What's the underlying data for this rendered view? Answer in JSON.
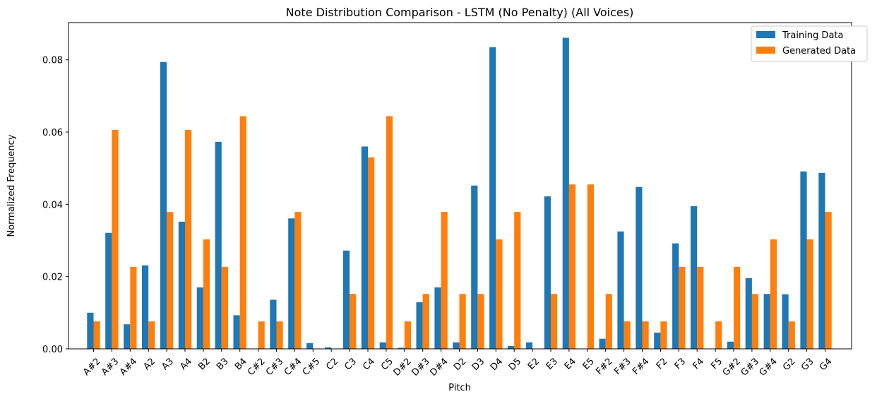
{
  "chart_data": {
    "type": "bar",
    "title": "Note Distribution Comparison - LSTM (No Penalty) (All Voices)",
    "xlabel": "Pitch",
    "ylabel": "Normalized Frequency",
    "ylim": [
      0,
      0.0903
    ],
    "yticks": [
      "0.00",
      "0.02",
      "0.04",
      "0.06",
      "0.08"
    ],
    "ytick_values": [
      0,
      0.02,
      0.04,
      0.06,
      0.08
    ],
    "legend_position": "top-right",
    "grid": false,
    "categories": [
      "A#2",
      "A#3",
      "A#4",
      "A2",
      "A3",
      "A4",
      "B2",
      "B3",
      "B4",
      "C#2",
      "C#3",
      "C#4",
      "C#5",
      "C2",
      "C3",
      "C4",
      "C5",
      "D#2",
      "D#3",
      "D#4",
      "D2",
      "D3",
      "D4",
      "D5",
      "E2",
      "E3",
      "E4",
      "E5",
      "F#2",
      "F#3",
      "F#4",
      "F2",
      "F3",
      "F4",
      "F5",
      "G#2",
      "G#3",
      "G#4",
      "G2",
      "G3",
      "G4"
    ],
    "series": [
      {
        "name": "Training Data",
        "color": "#1f77b4",
        "values": [
          0.01,
          0.0321,
          0.0068,
          0.0231,
          0.0794,
          0.0352,
          0.017,
          0.0573,
          0.0093,
          0.0,
          0.0136,
          0.0361,
          0.0016,
          0.0004,
          0.0272,
          0.056,
          0.0018,
          0.0003,
          0.0129,
          0.017,
          0.0018,
          0.0452,
          0.0835,
          0.0008,
          0.0018,
          0.0422,
          0.0861,
          0.0,
          0.0028,
          0.0325,
          0.0448,
          0.0045,
          0.0292,
          0.0395,
          0.0,
          0.002,
          0.0196,
          0.0152,
          0.0151,
          0.0491,
          0.0487
        ]
      },
      {
        "name": "Generated Data",
        "color": "#ff7f0e",
        "values": [
          0.0076,
          0.0606,
          0.0227,
          0.0076,
          0.0379,
          0.0606,
          0.0303,
          0.0227,
          0.0644,
          0.0076,
          0.0076,
          0.0379,
          0.0,
          0.0,
          0.0152,
          0.053,
          0.0644,
          0.0076,
          0.0152,
          0.0379,
          0.0152,
          0.0152,
          0.0303,
          0.0379,
          0.0,
          0.0152,
          0.0455,
          0.0455,
          0.0152,
          0.0076,
          0.0076,
          0.0076,
          0.0227,
          0.0227,
          0.0076,
          0.0227,
          0.0152,
          0.0303,
          0.0076,
          0.0303,
          0.0379
        ]
      }
    ]
  }
}
